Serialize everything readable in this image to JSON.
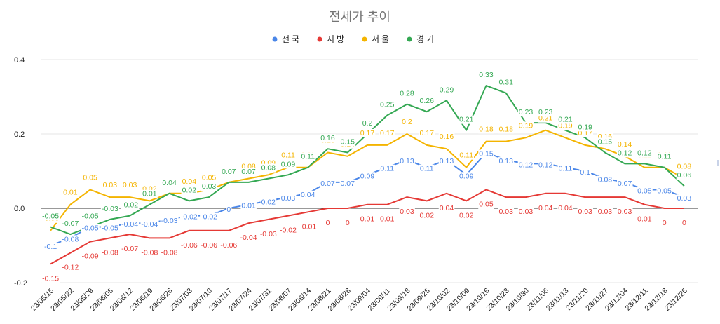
{
  "chart_data": {
    "type": "line",
    "title": "전세가 추이",
    "xlabel": "",
    "ylabel": "",
    "ylim": [
      -0.2,
      0.4
    ],
    "yticks": [
      -0.2,
      0.0,
      0.2,
      0.4
    ],
    "ytick_labels": [
      "-0.2",
      "0.0",
      "0.2",
      "0.4"
    ],
    "grid": true,
    "legend_position": "top",
    "categories": [
      "23/05/15",
      "23/05/22",
      "23/05/29",
      "23/06/05",
      "23/06/12",
      "23/06/19",
      "23/06/26",
      "23/07/03",
      "23/07/10",
      "23/07/17",
      "23/07/24",
      "23/07/31",
      "23/08/07",
      "23/08/14",
      "23/08/21",
      "23/08/28",
      "23/09/04",
      "23/09/11",
      "23/09/18",
      "23/09/25",
      "23/10/02",
      "23/10/09",
      "23/10/16",
      "23/10/23",
      "23/10/30",
      "23/11/06",
      "23/11/13",
      "23/11/20",
      "23/11/27",
      "23/12/04",
      "23/12/11",
      "23/12/18",
      "23/12/25"
    ],
    "series": [
      {
        "name": "전국",
        "color": "#4a86e8",
        "values": [
          -0.1,
          -0.08,
          -0.05,
          -0.05,
          -0.04,
          -0.04,
          -0.03,
          -0.02,
          -0.02,
          0,
          0.01,
          0.02,
          0.03,
          0.04,
          0.07,
          0.07,
          0.09,
          0.11,
          0.13,
          0.11,
          0.13,
          0.09,
          0.15,
          0.13,
          0.12,
          0.12,
          0.11,
          0.1,
          0.08,
          0.07,
          0.05,
          0.05,
          0.03
        ]
      },
      {
        "name": "지방",
        "color": "#e53935",
        "values": [
          -0.15,
          -0.12,
          -0.09,
          -0.08,
          -0.07,
          -0.08,
          -0.08,
          -0.06,
          -0.06,
          -0.06,
          -0.04,
          -0.03,
          -0.02,
          -0.01,
          0,
          0,
          0.01,
          0.01,
          0.03,
          0.02,
          0.04,
          0.02,
          0.05,
          0.03,
          0.03,
          0.04,
          0.04,
          0.03,
          0.03,
          0.03,
          0.01,
          0,
          0
        ]
      },
      {
        "name": "서울",
        "color": "#f4b400",
        "values": [
          -0.06,
          0.01,
          0.05,
          0.03,
          0.03,
          0.02,
          0.04,
          0.04,
          0.05,
          0.07,
          0.08,
          0.09,
          0.11,
          0.11,
          0.15,
          0.14,
          0.17,
          0.17,
          0.2,
          0.17,
          0.16,
          0.11,
          0.18,
          0.18,
          0.19,
          0.21,
          0.19,
          0.17,
          0.16,
          0.14,
          0.11,
          0.11,
          0.08
        ]
      },
      {
        "name": "경기",
        "color": "#34a853",
        "values": [
          -0.05,
          -0.07,
          -0.05,
          -0.03,
          -0.02,
          0.01,
          0.04,
          0.02,
          0.03,
          0.07,
          0.07,
          0.08,
          0.09,
          0.11,
          0.16,
          0.15,
          0.2,
          0.25,
          0.28,
          0.26,
          0.29,
          0.21,
          0.33,
          0.31,
          0.23,
          0.23,
          0.21,
          0.19,
          0.15,
          0.12,
          0.12,
          0.11,
          0.06
        ]
      }
    ]
  }
}
